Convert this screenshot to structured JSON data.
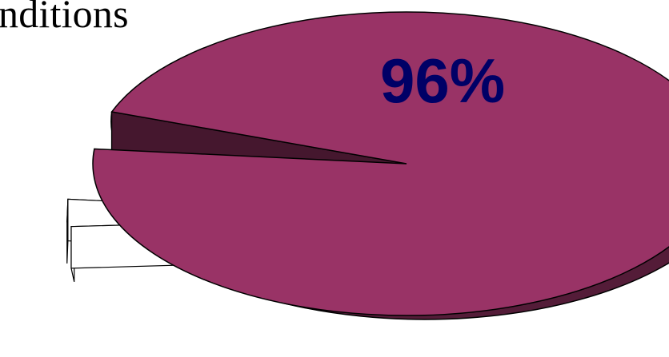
{
  "header": {
    "title_fragment": "nditions"
  },
  "chart_data": {
    "type": "pie",
    "style": "3d-exploded",
    "slices": [
      {
        "label": "96%",
        "value": 96,
        "color": "#993366"
      },
      {
        "label": "",
        "value": 2.5,
        "color": "#ffffff"
      },
      {
        "label": "",
        "value": 1.5,
        "color": "#ffffff"
      }
    ],
    "label_color": "#000066",
    "outline_color": "#000000",
    "legend": "none"
  }
}
